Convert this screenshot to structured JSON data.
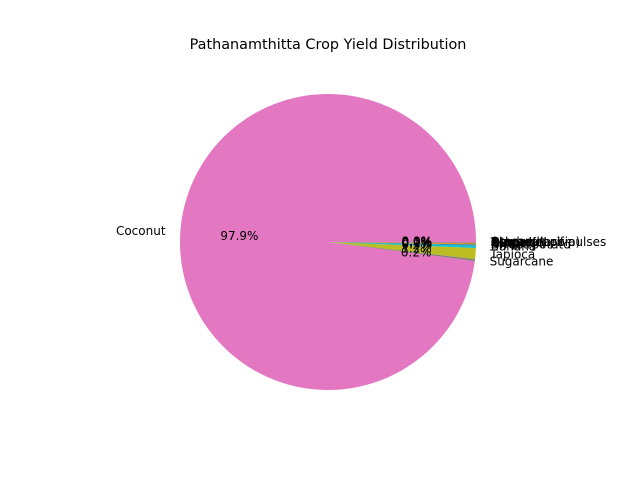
{
  "chart_data": {
    "type": "pie",
    "title": "Pathanamthitta Crop Yield Distribution",
    "start_angle_deg": 0,
    "direction": "counterclockwise",
    "slices": [
      {
        "label": "Coconut",
        "value": 97.9,
        "pct_label": "97.9%",
        "color": "#e377c2"
      },
      {
        "label": "Sugarcane",
        "value": 0.2,
        "pct_label": "0.2%",
        "color": "#7f7f7f"
      },
      {
        "label": "Tapioca",
        "value": 1.2,
        "pct_label": "1.2%",
        "color": "#bcbd22"
      },
      {
        "label": "Banana",
        "value": 0.3,
        "pct_label": "0.3%",
        "color": "#17becf"
      },
      {
        "label": "Sweet potato",
        "value": 0.1,
        "pct_label": "0.1%",
        "color": "#1f77b4"
      },
      {
        "label": "Rice",
        "value": 0.1,
        "pct_label": "0.1%",
        "color": "#ff7f0e"
      },
      {
        "label": "Ginger",
        "value": 0.05,
        "pct_label": "0.0%",
        "color": "#2ca02c"
      },
      {
        "label": "Turmeric",
        "value": 0.03,
        "pct_label": "0.0%",
        "color": "#d62728"
      },
      {
        "label": "Cowpea(Lobia)",
        "value": 0.02,
        "pct_label": "0.0%",
        "color": "#9467bd"
      },
      {
        "label": "Other Kharif pulses",
        "value": 0.02,
        "pct_label": "0.0%",
        "color": "#8c564b"
      },
      {
        "label": "Black pepper",
        "value": 0.01,
        "pct_label": "0.0%",
        "color": "#e377c2"
      },
      {
        "label": "Arecanut",
        "value": 0.02,
        "pct_label": "0.0%",
        "color": "#7f7f7f"
      }
    ]
  }
}
